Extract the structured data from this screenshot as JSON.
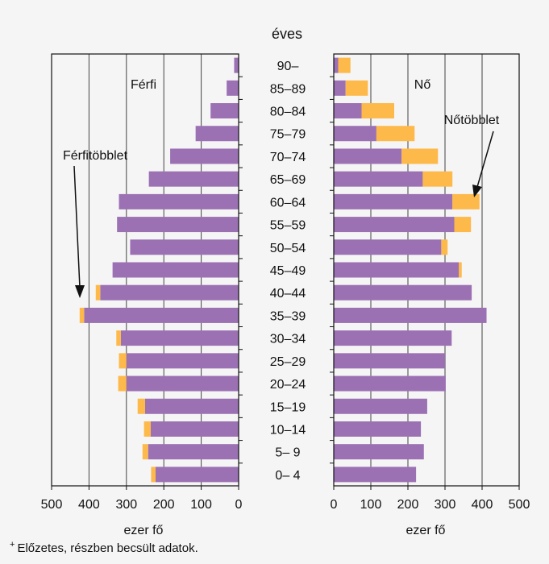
{
  "chart_data": {
    "type": "bar",
    "title": "éves",
    "categories": [
      "90–",
      "85–89",
      "80–84",
      "75–79",
      "70–74",
      "65–69",
      "60–64",
      "55–59",
      "50–54",
      "45–49",
      "40–44",
      "35–39",
      "30–34",
      "25–29",
      "20–24",
      "15–19",
      "10–14",
      "5– 9",
      "0– 4"
    ],
    "colors": {
      "base": "#9b71b4",
      "surplus": "#fdb94a",
      "frame": "#111111",
      "grid": "#444444",
      "background": "#f6f5f6"
    },
    "grid": true,
    "panels": [
      {
        "name": "Férfi",
        "xlabel": "ezer fő",
        "xlim": [
          500,
          0
        ],
        "ticks": [
          500,
          400,
          300,
          200,
          100,
          0
        ],
        "tick_labels": [
          "500",
          "400",
          "300",
          "200",
          "100",
          "0"
        ],
        "annotation": "Férfitöbblet",
        "series": [
          {
            "role": "base",
            "values": [
              12,
              32,
              75,
              115,
              183,
              240,
              320,
              325,
              290,
              337,
              370,
              413,
              315,
              300,
              300,
              250,
              235,
              242,
              222
            ]
          },
          {
            "role": "surplus",
            "values": [
              0,
              0,
              0,
              0,
              0,
              0,
              0,
              0,
              0,
              0,
              12,
              12,
              12,
              20,
              22,
              20,
              18,
              15,
              12
            ]
          }
        ]
      },
      {
        "name": "Nő",
        "xlabel": "ezer fő",
        "xlim": [
          0,
          500
        ],
        "ticks": [
          0,
          100,
          200,
          300,
          400,
          500
        ],
        "tick_labels": [
          "0",
          "100",
          "200",
          "300",
          "400",
          "500"
        ],
        "annotation": "Nőtöbblet",
        "series": [
          {
            "role": "base",
            "values": [
              12,
              32,
              75,
              115,
              183,
              240,
              320,
              325,
              290,
              337,
              372,
              412,
              318,
              300,
              302,
              252,
              235,
              243,
              222
            ]
          },
          {
            "role": "surplus",
            "values": [
              33,
              60,
              88,
              103,
              98,
              80,
              73,
              45,
              17,
              8,
              0,
              0,
              0,
              0,
              0,
              0,
              0,
              0,
              0
            ]
          }
        ]
      }
    ]
  },
  "footnote": {
    "marker": "+",
    "text": "Előzetes, részben becsült adatok."
  }
}
